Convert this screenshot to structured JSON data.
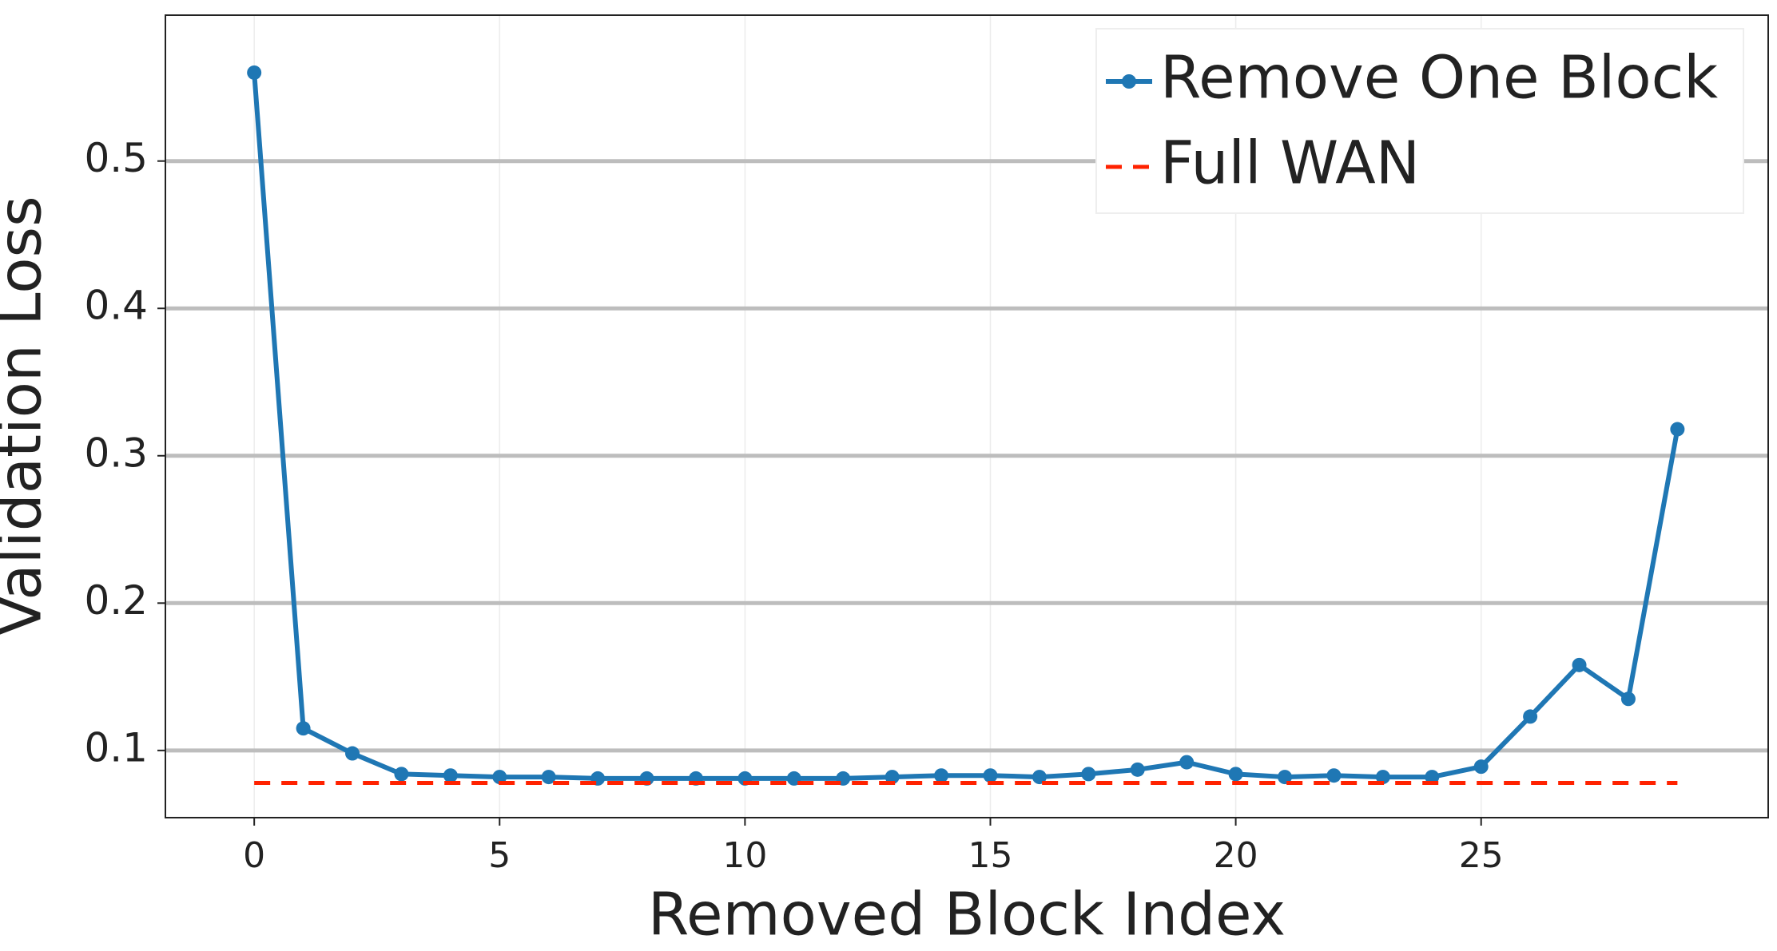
{
  "chart_data": {
    "type": "line",
    "x_label": "Removed Block Index",
    "y_label": "Validation Loss",
    "x": [
      0,
      1,
      2,
      3,
      4,
      5,
      6,
      7,
      8,
      9,
      10,
      11,
      12,
      13,
      14,
      15,
      16,
      17,
      18,
      19,
      20,
      21,
      22,
      23,
      24,
      25,
      26,
      27,
      28,
      29
    ],
    "series": [
      {
        "name": "Remove One Block",
        "color": "#1f77b4",
        "style": "solid-markers",
        "values": [
          0.56,
          0.115,
          0.098,
          0.084,
          0.083,
          0.082,
          0.082,
          0.081,
          0.081,
          0.081,
          0.081,
          0.081,
          0.081,
          0.082,
          0.083,
          0.083,
          0.082,
          0.084,
          0.087,
          0.092,
          0.084,
          0.082,
          0.083,
          0.082,
          0.082,
          0.089,
          0.123,
          0.158,
          0.135,
          0.318
        ]
      },
      {
        "name": "Full WAN",
        "color": "#ff2200",
        "style": "dashed",
        "x": [
          0,
          29
        ],
        "values": [
          0.078,
          0.078
        ]
      }
    ],
    "xlim": [
      -1.81,
      30.85
    ],
    "ylim": [
      0.0544,
      0.599
    ],
    "xticks": [
      0,
      5,
      10,
      15,
      20,
      25
    ],
    "yticks": [
      0.1,
      0.2,
      0.3,
      0.4,
      0.5
    ],
    "grid": true,
    "legend": "upper right"
  }
}
